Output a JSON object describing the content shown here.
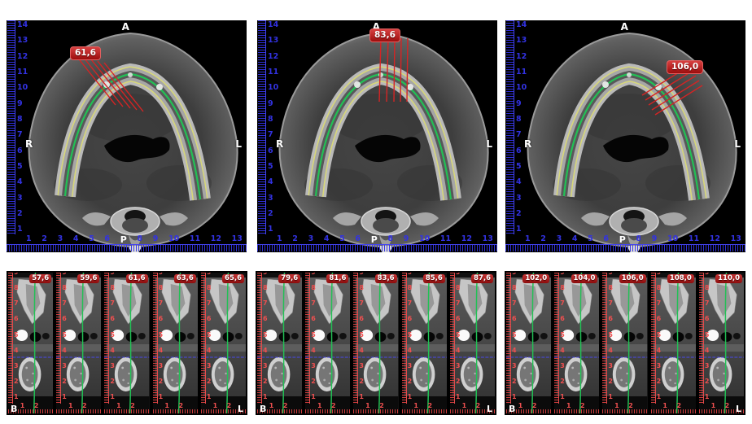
{
  "axial_panels": [
    {
      "measurement": "61,6",
      "orientation": {
        "top": "A",
        "left": "R",
        "right": "L"
      }
    },
    {
      "measurement": "83,6",
      "orientation": {
        "top": "A",
        "left": "R",
        "right": "L"
      }
    },
    {
      "measurement": "106,0",
      "orientation": {
        "top": "A",
        "left": "R",
        "right": "L"
      }
    }
  ],
  "rulers": {
    "axial_vertical": [
      "14",
      "13",
      "12",
      "11",
      "10",
      "9",
      "8",
      "7",
      "6",
      "5",
      "4",
      "3",
      "2",
      "1"
    ],
    "axial_horizontal": [
      "1",
      "2",
      "3",
      "4",
      "5",
      "6",
      "P",
      "8",
      "9",
      "10",
      "11",
      "12",
      "13"
    ],
    "cross_vertical": [
      "9",
      "8",
      "7",
      "6",
      "5",
      "4",
      "3",
      "2",
      "1"
    ],
    "cross_horizontal": [
      "1",
      "2"
    ]
  },
  "cross_panels": [
    {
      "corner_left": "B",
      "corner_right": "L",
      "slices": [
        "57,6",
        "59,6",
        "61,6",
        "63,6",
        "65,6"
      ]
    },
    {
      "corner_left": "B",
      "corner_right": "L",
      "slices": [
        "79,6",
        "81,6",
        "83,6",
        "85,6",
        "87,6"
      ]
    },
    {
      "corner_left": "B",
      "corner_right": "L",
      "slices": [
        "102,0",
        "104,0",
        "106,0",
        "108,0",
        "110,0"
      ]
    }
  ],
  "colors": {
    "ruler_blue": "#3232e2",
    "ruler_red": "#e24b4b",
    "badge_red": "#9c0d0d",
    "panoramic_green": "#22c055",
    "contour_yellow": "#d8d878",
    "crosshair_blue": "#4848e8",
    "label_white": "#ffffff"
  }
}
